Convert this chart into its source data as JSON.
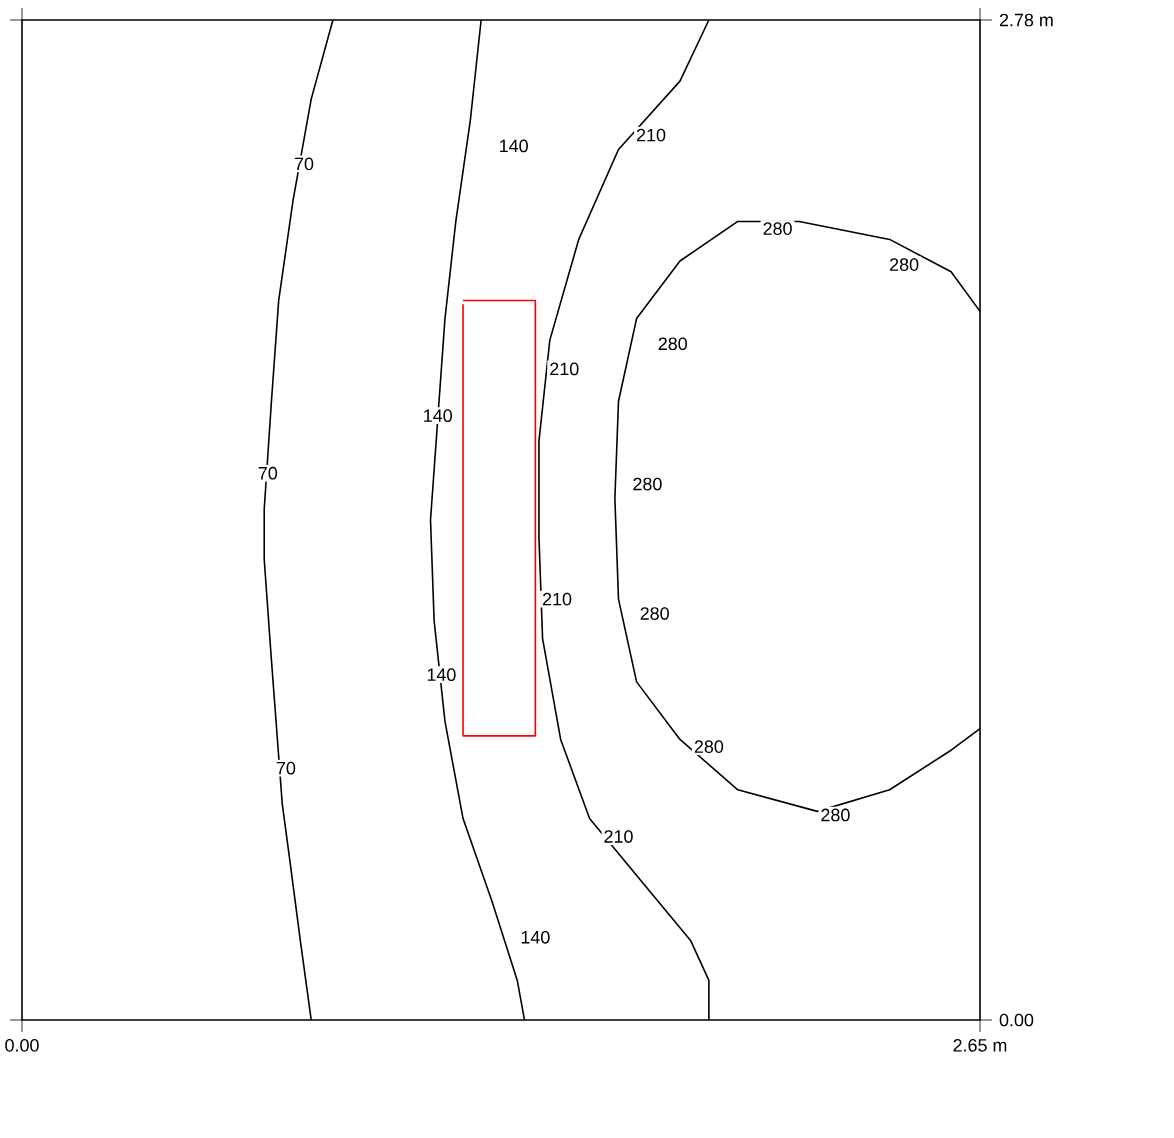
{
  "chart_data": {
    "type": "line",
    "xlim": [
      0,
      2.65
    ],
    "ylim": [
      0,
      2.78
    ],
    "xticks": [
      {
        "value": 0,
        "label": "0.00"
      },
      {
        "value": 2.65,
        "label": "2.65 m"
      }
    ],
    "yticks": [
      {
        "value": 0,
        "label": "0.00"
      },
      {
        "value": 2.78,
        "label": "2.78 m"
      }
    ],
    "series": [
      {
        "color": "#000000",
        "x": [
          0.86,
          0.8,
          0.75,
          0.71,
          0.69,
          0.67,
          0.67,
          0.69,
          0.72,
          0.74,
          0.77,
          0.8
        ],
        "values": [
          2.78,
          2.56,
          2.28,
          2.0,
          1.72,
          1.42,
          1.28,
          1.0,
          0.6,
          0.45,
          0.22,
          0
        ]
      },
      {
        "color": "#000000",
        "x": [
          1.27,
          1.24,
          1.2,
          1.17,
          1.15,
          1.13,
          1.14,
          1.17,
          1.22,
          1.3,
          1.37,
          1.39
        ],
        "values": [
          2.78,
          2.5,
          2.22,
          1.95,
          1.67,
          1.39,
          1.11,
          0.83,
          0.56,
          0.33,
          0.11,
          0
        ]
      },
      {
        "color": "#000000",
        "x": [
          1.9,
          1.82,
          1.65,
          1.54,
          1.46,
          1.43,
          1.43,
          1.44,
          1.49,
          1.57,
          1.71,
          1.85,
          1.9,
          1.9
        ],
        "values": [
          2.78,
          2.61,
          2.42,
          2.17,
          1.89,
          1.61,
          1.34,
          1.06,
          0.78,
          0.56,
          0.39,
          0.22,
          0.11,
          0
        ]
      },
      {
        "color": "#000000",
        "x": [
          2.65,
          2.57,
          2.4,
          2.15,
          1.98,
          1.82,
          1.7,
          1.65,
          1.64,
          1.65,
          1.7,
          1.82,
          1.98,
          2.2,
          2.4,
          2.57,
          2.65
        ],
        "values": [
          1.97,
          2.08,
          2.17,
          2.22,
          2.22,
          2.11,
          1.95,
          1.72,
          1.45,
          1.17,
          0.94,
          0.78,
          0.64,
          0.58,
          0.64,
          0.75,
          0.81
        ]
      },
      {
        "color": "#ff0000",
        "x": [
          1.22,
          1.42,
          1.42,
          1.22,
          1.22
        ],
        "values": [
          2.0,
          2.0,
          0.79,
          0.79,
          1.99
        ]
      }
    ],
    "annotations": [
      {
        "text": "70",
        "x": 0.78,
        "y": 2.38
      },
      {
        "text": "70",
        "x": 0.68,
        "y": 1.52
      },
      {
        "text": "70",
        "x": 0.73,
        "y": 0.7
      },
      {
        "text": "140",
        "x": 1.36,
        "y": 2.43
      },
      {
        "text": "140",
        "x": 1.15,
        "y": 1.68
      },
      {
        "text": "140",
        "x": 1.16,
        "y": 0.96
      },
      {
        "text": "140",
        "x": 1.42,
        "y": 0.23
      },
      {
        "text": "210",
        "x": 1.74,
        "y": 2.46
      },
      {
        "text": "210",
        "x": 1.5,
        "y": 1.81
      },
      {
        "text": "210",
        "x": 1.48,
        "y": 1.17
      },
      {
        "text": "210",
        "x": 1.65,
        "y": 0.51
      },
      {
        "text": "280",
        "x": 2.09,
        "y": 2.2
      },
      {
        "text": "280",
        "x": 2.44,
        "y": 2.1
      },
      {
        "text": "280",
        "x": 1.8,
        "y": 1.88
      },
      {
        "text": "280",
        "x": 1.73,
        "y": 1.49
      },
      {
        "text": "280",
        "x": 1.75,
        "y": 1.13
      },
      {
        "text": "280",
        "x": 1.9,
        "y": 0.76
      },
      {
        "text": "280",
        "x": 2.25,
        "y": 0.57
      }
    ]
  }
}
